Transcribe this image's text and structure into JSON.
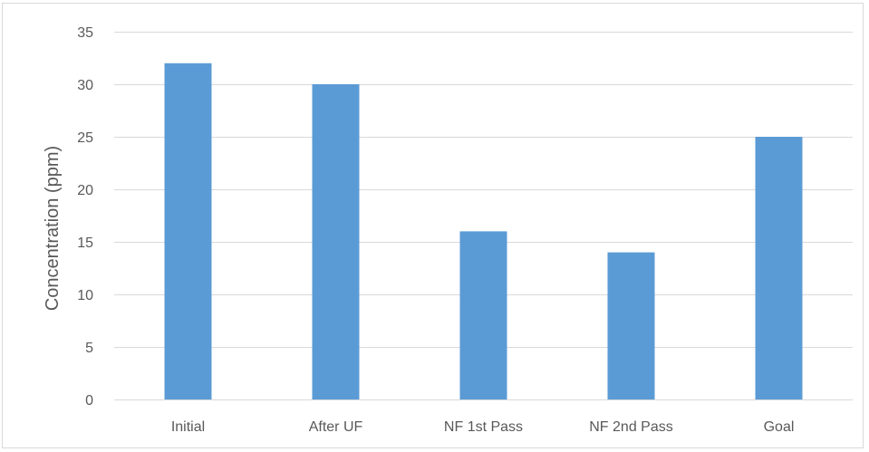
{
  "chart_data": {
    "type": "bar",
    "categories": [
      "Initial",
      "After UF",
      "NF 1st Pass",
      "NF 2nd Pass",
      "Goal"
    ],
    "values": [
      32,
      30,
      16,
      14,
      25
    ],
    "title": "",
    "xlabel": "",
    "ylabel": "Concentration (ppm)",
    "ylim": [
      0,
      35
    ],
    "yticks": [
      0,
      5,
      10,
      15,
      20,
      25,
      30,
      35
    ],
    "grid": true,
    "legend": "none",
    "bar_color": "#5b9bd5",
    "grid_color": "#d9d9d9"
  }
}
